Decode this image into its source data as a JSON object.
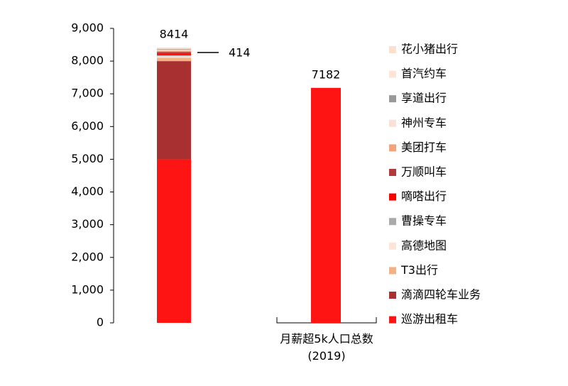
{
  "chart_data": {
    "type": "stacked_bar",
    "categories": [
      null,
      "月薪超5k人口总数(2019)"
    ],
    "series": [
      {
        "name": "巡游出租车",
        "color": "#ff1414",
        "values": [
          5000,
          7182
        ]
      },
      {
        "name": "滴滴四轮车业务",
        "color": "#a93030",
        "values": [
          3000,
          null
        ]
      },
      {
        "name": "T3出行",
        "color": "#f4b183",
        "values": [
          100,
          null
        ]
      },
      {
        "name": "高德地图",
        "color": "#fce4d6",
        "values": [
          50,
          null
        ]
      },
      {
        "name": "曹操专车",
        "color": "#aaaaaa",
        "values": [
          30,
          null
        ]
      },
      {
        "name": "嘀嗒出行",
        "color": "#ff0000",
        "values": [
          40,
          null
        ]
      },
      {
        "name": "万顺叫车",
        "color": "#b23a3a",
        "values": [
          60,
          null
        ]
      },
      {
        "name": "美团打车",
        "color": "#f4a37a",
        "values": [
          40,
          null
        ]
      },
      {
        "name": "神州专车",
        "color": "#fbe0d6",
        "values": [
          30,
          null
        ]
      },
      {
        "name": "享道出行",
        "color": "#999999",
        "values": [
          20,
          null
        ]
      },
      {
        "name": "首汽约车",
        "color": "#fce4d6",
        "values": [
          20,
          null
        ]
      },
      {
        "name": "花小猪出行",
        "color": "#fbe0d0",
        "values": [
          24,
          null
        ]
      }
    ],
    "totals": [
      8414,
      7182
    ],
    "annotation": 414,
    "ylim": [
      0,
      9000
    ],
    "yticks": [
      0,
      {
        "value": 1000,
        "label": "1,000"
      },
      {
        "value": 2000,
        "label": "2,000"
      },
      {
        "value": 3000,
        "label": "3,000"
      },
      {
        "value": 4000,
        "label": "4,000"
      },
      {
        "value": 5000,
        "label": "5,000"
      },
      {
        "value": 6000,
        "label": "6,000"
      },
      {
        "value": 7000,
        "label": "7,000"
      },
      {
        "value": 8000,
        "label": "8,000"
      },
      {
        "value": 9000,
        "label": "9,000"
      }
    ],
    "grid": false
  }
}
